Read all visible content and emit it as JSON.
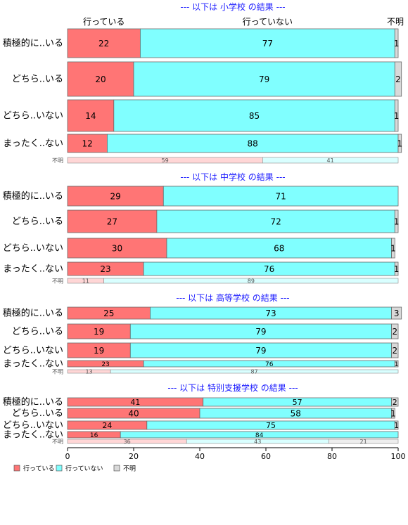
{
  "chart_data": {
    "type": "bar",
    "stacked": true,
    "orientation": "horizontal",
    "xlim": [
      0,
      100
    ],
    "x_ticks": [
      "0",
      "20",
      "40",
      "60",
      "80",
      "100"
    ],
    "column_headers": [
      "行っている",
      "行っていない",
      "不明"
    ],
    "legend": {
      "placement": "bottom-left",
      "entries": [
        {
          "label": "行っている",
          "color": "#ff7575"
        },
        {
          "label": "行っていない",
          "color": "#80ffff"
        },
        {
          "label": "不明",
          "color": "#d9d9d9"
        }
      ]
    },
    "unknown_label": "不明",
    "sections": [
      {
        "title": "--- 以下は 小学校 の結果 ---",
        "categories": [
          "積極的に..いる",
          "どちら..いる",
          "どちら..いない",
          "まったく..ない"
        ],
        "series": [
          {
            "name": "行っている",
            "values": [
              22,
              20,
              14,
              12
            ]
          },
          {
            "name": "行っていない",
            "values": [
              77,
              79,
              85,
              88
            ]
          },
          {
            "name": "不明",
            "values": [
              1,
              2,
              1,
              1
            ]
          }
        ],
        "unknown_row": [
          59,
          41
        ]
      },
      {
        "title": "--- 以下は 中学校 の結果 ---",
        "categories": [
          "積極的に..いる",
          "どちら..いる",
          "どちら..いない",
          "まったく..ない"
        ],
        "series": [
          {
            "name": "行っている",
            "values": [
              29,
              27,
              30,
              23
            ]
          },
          {
            "name": "行っていない",
            "values": [
              71,
              72,
              68,
              76
            ]
          },
          {
            "name": "不明",
            "values": [
              0,
              1,
              1,
              1
            ]
          }
        ],
        "unknown_row": [
          11,
          89
        ]
      },
      {
        "title": "--- 以下は 高等学校 の結果 ---",
        "categories": [
          "積極的に..いる",
          "どちら..いる",
          "どちら..いない",
          "まったく..ない"
        ],
        "series": [
          {
            "name": "行っている",
            "values": [
              25,
              19,
              19,
              23
            ]
          },
          {
            "name": "行っていない",
            "values": [
              73,
              79,
              79,
              76
            ]
          },
          {
            "name": "不明",
            "values": [
              3,
              2,
              2,
              1
            ]
          }
        ],
        "unknown_row": [
          13,
          87
        ]
      },
      {
        "title": "--- 以下は 特別支援学校 の結果 ---",
        "categories": [
          "積極的に..いる",
          "どちら..いる",
          "どちら..いない",
          "まったく..ない"
        ],
        "series": [
          {
            "name": "行っている",
            "values": [
              41,
              40,
              24,
              16
            ]
          },
          {
            "name": "行っていない",
            "values": [
              57,
              58,
              75,
              84
            ]
          },
          {
            "name": "不明",
            "values": [
              2,
              1,
              1,
              0
            ]
          }
        ],
        "unknown_row": [
          36,
          43,
          21
        ]
      }
    ]
  }
}
